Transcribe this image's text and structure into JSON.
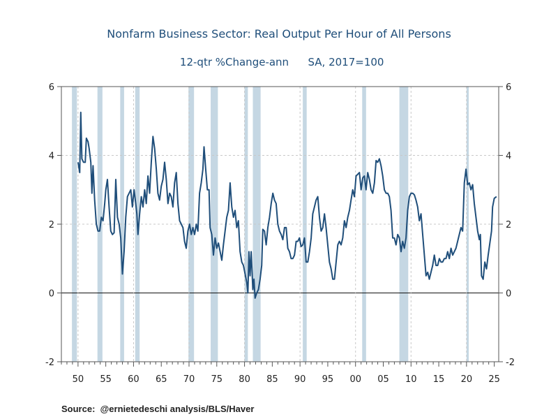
{
  "chart_data": {
    "type": "line",
    "title": "Nonfarm Business Sector: Real Output Per Hour of All Persons",
    "subtitle_left": "12-qtr %Change-ann",
    "subtitle_right": "SA, 2017=100",
    "xlim": [
      1947,
      2025.8
    ],
    "ylim": [
      -2,
      6
    ],
    "y_ticks": [
      -2,
      0,
      2,
      4,
      6
    ],
    "x_ticks": [
      {
        "value": 1950,
        "label": "50"
      },
      {
        "value": 1955,
        "label": "55"
      },
      {
        "value": 1960,
        "label": "60"
      },
      {
        "value": 1965,
        "label": "65"
      },
      {
        "value": 1970,
        "label": "70"
      },
      {
        "value": 1975,
        "label": "75"
      },
      {
        "value": 1980,
        "label": "80"
      },
      {
        "value": 1985,
        "label": "85"
      },
      {
        "value": 1990,
        "label": "90"
      },
      {
        "value": 1995,
        "label": "95"
      },
      {
        "value": 2000,
        "label": "00"
      },
      {
        "value": 2005,
        "label": "05"
      },
      {
        "value": 2010,
        "label": "10"
      },
      {
        "value": 2015,
        "label": "15"
      },
      {
        "value": 2020,
        "label": "20"
      },
      {
        "value": 2025,
        "label": "25"
      }
    ],
    "grid": true,
    "line_color": "#1f4e7a",
    "recession_color": "#c5d7e3",
    "recessions": [
      [
        1948.9,
        1949.8
      ],
      [
        1953.5,
        1954.4
      ],
      [
        1957.6,
        1958.3
      ],
      [
        1960.3,
        1961.1
      ],
      [
        1969.9,
        1970.9
      ],
      [
        1973.9,
        1975.2
      ],
      [
        1980.0,
        1980.6
      ],
      [
        1981.5,
        1982.9
      ],
      [
        1990.5,
        1991.2
      ],
      [
        2001.2,
        2001.9
      ],
      [
        2007.9,
        2009.5
      ],
      [
        2020.0,
        2020.4
      ]
    ],
    "series": [
      {
        "points": [
          [
            1950.0,
            3.8
          ],
          [
            1950.3,
            3.5
          ],
          [
            1950.5,
            5.25
          ],
          [
            1950.7,
            3.9
          ],
          [
            1951.0,
            3.8
          ],
          [
            1951.3,
            3.8
          ],
          [
            1951.5,
            4.5
          ],
          [
            1951.8,
            4.4
          ],
          [
            1952.0,
            4.2
          ],
          [
            1952.3,
            3.8
          ],
          [
            1952.5,
            2.9
          ],
          [
            1952.7,
            3.7
          ],
          [
            1953.0,
            2.7
          ],
          [
            1953.3,
            2.0
          ],
          [
            1953.6,
            1.8
          ],
          [
            1953.9,
            1.8
          ],
          [
            1954.2,
            2.2
          ],
          [
            1954.5,
            2.1
          ],
          [
            1954.8,
            2.6
          ],
          [
            1955.0,
            3.0
          ],
          [
            1955.3,
            3.3
          ],
          [
            1955.6,
            2.5
          ],
          [
            1955.9,
            1.8
          ],
          [
            1956.2,
            1.7
          ],
          [
            1956.5,
            1.75
          ],
          [
            1956.8,
            3.3
          ],
          [
            1957.1,
            2.2
          ],
          [
            1957.4,
            2.0
          ],
          [
            1957.7,
            1.6
          ],
          [
            1958.0,
            0.55
          ],
          [
            1958.3,
            1.2
          ],
          [
            1958.6,
            2.2
          ],
          [
            1958.9,
            2.8
          ],
          [
            1959.2,
            2.9
          ],
          [
            1959.5,
            3.0
          ],
          [
            1959.8,
            2.5
          ],
          [
            1960.1,
            3.0
          ],
          [
            1960.4,
            2.6
          ],
          [
            1960.6,
            2.3
          ],
          [
            1960.8,
            1.7
          ],
          [
            1961.1,
            2.3
          ],
          [
            1961.4,
            2.8
          ],
          [
            1961.7,
            2.5
          ],
          [
            1962.0,
            3.0
          ],
          [
            1962.3,
            2.6
          ],
          [
            1962.6,
            3.4
          ],
          [
            1962.9,
            2.9
          ],
          [
            1963.2,
            3.8
          ],
          [
            1963.5,
            4.55
          ],
          [
            1963.8,
            4.2
          ],
          [
            1964.1,
            3.6
          ],
          [
            1964.4,
            2.9
          ],
          [
            1964.7,
            2.7
          ],
          [
            1965.0,
            3.1
          ],
          [
            1965.3,
            3.3
          ],
          [
            1965.6,
            3.8
          ],
          [
            1965.9,
            3.3
          ],
          [
            1966.2,
            2.6
          ],
          [
            1966.5,
            2.9
          ],
          [
            1966.8,
            2.8
          ],
          [
            1967.1,
            2.5
          ],
          [
            1967.4,
            3.2
          ],
          [
            1967.7,
            3.5
          ],
          [
            1968.0,
            2.6
          ],
          [
            1968.3,
            2.1
          ],
          [
            1968.6,
            2.0
          ],
          [
            1968.9,
            1.9
          ],
          [
            1969.2,
            1.5
          ],
          [
            1969.5,
            1.3
          ],
          [
            1969.8,
            1.8
          ],
          [
            1970.1,
            2.0
          ],
          [
            1970.4,
            1.7
          ],
          [
            1970.7,
            1.9
          ],
          [
            1971.0,
            1.7
          ],
          [
            1971.3,
            2.0
          ],
          [
            1971.6,
            1.8
          ],
          [
            1971.9,
            2.9
          ],
          [
            1972.2,
            3.2
          ],
          [
            1972.5,
            3.6
          ],
          [
            1972.7,
            4.25
          ],
          [
            1973.0,
            3.6
          ],
          [
            1973.3,
            3.0
          ],
          [
            1973.6,
            3.0
          ],
          [
            1973.8,
            1.9
          ],
          [
            1974.1,
            1.7
          ],
          [
            1974.4,
            1.1
          ],
          [
            1974.7,
            1.6
          ],
          [
            1975.0,
            1.3
          ],
          [
            1975.3,
            1.45
          ],
          [
            1975.6,
            1.2
          ],
          [
            1975.9,
            0.95
          ],
          [
            1976.2,
            1.4
          ],
          [
            1976.5,
            1.8
          ],
          [
            1976.8,
            2.2
          ],
          [
            1977.1,
            2.4
          ],
          [
            1977.4,
            3.2
          ],
          [
            1977.7,
            2.5
          ],
          [
            1978.0,
            2.2
          ],
          [
            1978.3,
            2.4
          ],
          [
            1978.6,
            1.9
          ],
          [
            1978.9,
            2.1
          ],
          [
            1979.2,
            1.2
          ],
          [
            1979.5,
            0.9
          ],
          [
            1979.8,
            0.8
          ],
          [
            1980.1,
            0.55
          ],
          [
            1980.4,
            0.3
          ],
          [
            1980.6,
            0.0
          ],
          [
            1980.8,
            1.2
          ],
          [
            1981.0,
            0.5
          ],
          [
            1981.2,
            1.2
          ],
          [
            1981.5,
            0.1
          ],
          [
            1981.7,
            0.4
          ],
          [
            1981.9,
            -0.15
          ],
          [
            1982.2,
            0.0
          ],
          [
            1982.5,
            0.1
          ],
          [
            1982.8,
            0.4
          ],
          [
            1983.1,
            0.8
          ],
          [
            1983.3,
            1.85
          ],
          [
            1983.6,
            1.8
          ],
          [
            1983.9,
            1.4
          ],
          [
            1984.2,
            1.9
          ],
          [
            1984.5,
            2.2
          ],
          [
            1984.8,
            2.6
          ],
          [
            1985.1,
            2.9
          ],
          [
            1985.4,
            2.7
          ],
          [
            1985.7,
            2.6
          ],
          [
            1986.0,
            2.0
          ],
          [
            1986.3,
            1.8
          ],
          [
            1986.6,
            1.7
          ],
          [
            1986.9,
            1.55
          ],
          [
            1987.2,
            1.9
          ],
          [
            1987.5,
            1.9
          ],
          [
            1987.8,
            1.3
          ],
          [
            1988.1,
            1.2
          ],
          [
            1988.4,
            1.0
          ],
          [
            1988.7,
            1.0
          ],
          [
            1989.0,
            1.1
          ],
          [
            1989.3,
            1.5
          ],
          [
            1989.6,
            1.5
          ],
          [
            1989.9,
            1.6
          ],
          [
            1990.2,
            1.35
          ],
          [
            1990.5,
            1.4
          ],
          [
            1990.8,
            1.6
          ],
          [
            1991.1,
            0.9
          ],
          [
            1991.4,
            0.9
          ],
          [
            1991.7,
            1.2
          ],
          [
            1992.0,
            1.6
          ],
          [
            1992.3,
            2.3
          ],
          [
            1992.6,
            2.5
          ],
          [
            1992.9,
            2.7
          ],
          [
            1993.2,
            2.8
          ],
          [
            1993.5,
            2.2
          ],
          [
            1993.8,
            1.8
          ],
          [
            1994.1,
            1.9
          ],
          [
            1994.4,
            2.3
          ],
          [
            1994.7,
            1.9
          ],
          [
            1995.0,
            1.4
          ],
          [
            1995.3,
            0.9
          ],
          [
            1995.6,
            0.7
          ],
          [
            1995.9,
            0.4
          ],
          [
            1996.2,
            0.4
          ],
          [
            1996.5,
            0.9
          ],
          [
            1996.8,
            1.4
          ],
          [
            1997.1,
            1.5
          ],
          [
            1997.4,
            1.4
          ],
          [
            1997.7,
            1.6
          ],
          [
            1998.0,
            2.1
          ],
          [
            1998.3,
            1.9
          ],
          [
            1998.6,
            2.2
          ],
          [
            1998.9,
            2.4
          ],
          [
            1999.2,
            2.7
          ],
          [
            1999.5,
            3.0
          ],
          [
            1999.8,
            2.8
          ],
          [
            2000.1,
            3.4
          ],
          [
            2000.4,
            3.45
          ],
          [
            2000.7,
            3.5
          ],
          [
            2001.0,
            3.0
          ],
          [
            2001.3,
            3.35
          ],
          [
            2001.6,
            3.4
          ],
          [
            2001.9,
            3.0
          ],
          [
            2002.2,
            3.5
          ],
          [
            2002.5,
            3.3
          ],
          [
            2002.8,
            3.0
          ],
          [
            2003.1,
            2.9
          ],
          [
            2003.4,
            3.2
          ],
          [
            2003.7,
            3.85
          ],
          [
            2004.0,
            3.8
          ],
          [
            2004.3,
            3.9
          ],
          [
            2004.6,
            3.7
          ],
          [
            2004.9,
            3.4
          ],
          [
            2005.2,
            3.0
          ],
          [
            2005.5,
            2.9
          ],
          [
            2005.8,
            2.9
          ],
          [
            2006.1,
            2.8
          ],
          [
            2006.4,
            2.4
          ],
          [
            2006.7,
            1.6
          ],
          [
            2007.0,
            1.6
          ],
          [
            2007.3,
            1.4
          ],
          [
            2007.6,
            1.7
          ],
          [
            2007.9,
            1.6
          ],
          [
            2008.2,
            1.2
          ],
          [
            2008.5,
            1.5
          ],
          [
            2008.8,
            1.3
          ],
          [
            2009.1,
            1.6
          ],
          [
            2009.4,
            2.4
          ],
          [
            2009.7,
            2.8
          ],
          [
            2010.0,
            2.9
          ],
          [
            2010.3,
            2.9
          ],
          [
            2010.6,
            2.85
          ],
          [
            2010.9,
            2.7
          ],
          [
            2011.2,
            2.5
          ],
          [
            2011.5,
            2.1
          ],
          [
            2011.8,
            2.3
          ],
          [
            2012.1,
            1.7
          ],
          [
            2012.4,
            1.1
          ],
          [
            2012.7,
            0.5
          ],
          [
            2013.0,
            0.6
          ],
          [
            2013.3,
            0.4
          ],
          [
            2013.6,
            0.6
          ],
          [
            2013.9,
            0.8
          ],
          [
            2014.2,
            1.1
          ],
          [
            2014.5,
            0.8
          ],
          [
            2014.8,
            0.8
          ],
          [
            2015.1,
            1.0
          ],
          [
            2015.4,
            0.9
          ],
          [
            2015.7,
            0.9
          ],
          [
            2016.0,
            1.0
          ],
          [
            2016.3,
            1.0
          ],
          [
            2016.6,
            1.2
          ],
          [
            2016.9,
            1.0
          ],
          [
            2017.2,
            1.3
          ],
          [
            2017.5,
            1.1
          ],
          [
            2017.8,
            1.2
          ],
          [
            2018.1,
            1.3
          ],
          [
            2018.4,
            1.5
          ],
          [
            2018.7,
            1.7
          ],
          [
            2019.0,
            1.9
          ],
          [
            2019.3,
            1.8
          ],
          [
            2019.6,
            3.2
          ],
          [
            2019.9,
            3.6
          ],
          [
            2020.2,
            3.15
          ],
          [
            2020.5,
            3.2
          ],
          [
            2020.8,
            3.0
          ],
          [
            2021.1,
            3.15
          ],
          [
            2021.4,
            2.6
          ],
          [
            2021.7,
            2.2
          ],
          [
            2022.0,
            1.8
          ],
          [
            2022.3,
            1.55
          ],
          [
            2022.5,
            1.7
          ],
          [
            2022.7,
            0.5
          ],
          [
            2023.0,
            0.4
          ],
          [
            2023.3,
            0.9
          ],
          [
            2023.6,
            0.7
          ],
          [
            2023.9,
            1.1
          ],
          [
            2024.2,
            1.45
          ],
          [
            2024.5,
            1.8
          ],
          [
            2024.7,
            2.5
          ],
          [
            2025.0,
            2.75
          ],
          [
            2025.4,
            2.8
          ]
        ]
      }
    ]
  },
  "source": "Source:  @ernietedeschi analysis/BLS/Haver"
}
